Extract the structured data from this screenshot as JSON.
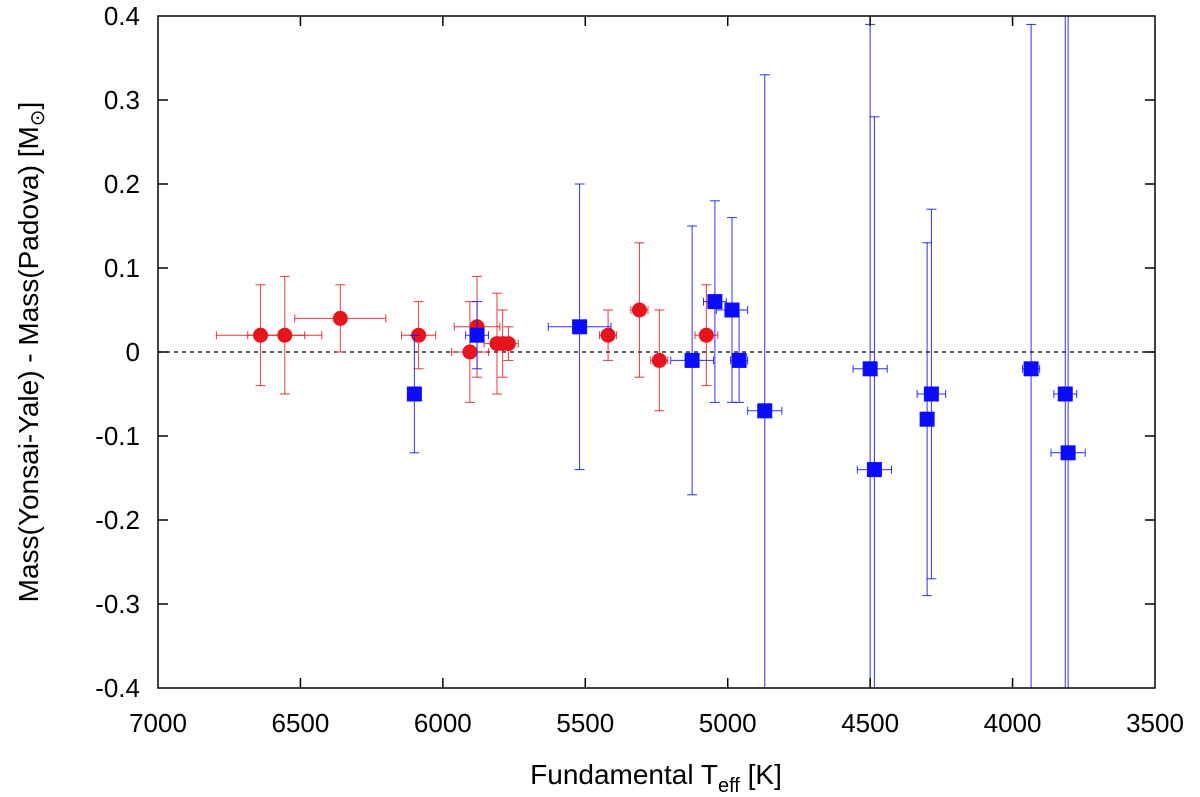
{
  "chart_data": {
    "type": "scatter",
    "title": "",
    "xlabel": {
      "main": "Fundamental T",
      "sub": "eff",
      "unit": " [K]"
    },
    "ylabel": {
      "main": "Mass(Yonsai-Yale) - Mass(Padova) [M",
      "sun_symbol": "⊙",
      "end": "]"
    },
    "xlim": [
      7000,
      3500
    ],
    "ylim": [
      -0.4,
      0.4
    ],
    "x_reversed": true,
    "xticks": [
      "7000",
      "6500",
      "6000",
      "5500",
      "5000",
      "4500",
      "4000",
      "3500"
    ],
    "yticks": [
      "-0.4",
      "-0.3",
      "-0.2",
      "-0.1",
      "0",
      "0.1",
      "0.2",
      "0.3",
      "0.4"
    ],
    "reference_line": {
      "y": 0,
      "style": "dashed"
    },
    "grid": false,
    "series": [
      {
        "color": "#e8141c",
        "marker": "circle",
        "points": [
          {
            "x": 6640,
            "y": 0.02,
            "xerr": 155,
            "ylo": -0.04,
            "yhi": 0.08
          },
          {
            "x": 6555,
            "y": 0.02,
            "xerr": 130,
            "ylo": -0.05,
            "yhi": 0.09
          },
          {
            "x": 6360,
            "y": 0.04,
            "xerr": 160,
            "ylo": 0.0,
            "yhi": 0.08
          },
          {
            "x": 6085,
            "y": 0.02,
            "xerr": 60,
            "ylo": -0.02,
            "yhi": 0.06
          },
          {
            "x": 5905,
            "y": 0.0,
            "xerr": 65,
            "ylo": -0.06,
            "yhi": 0.06
          },
          {
            "x": 5880,
            "y": 0.03,
            "xerr": 80,
            "ylo": -0.03,
            "yhi": 0.09
          },
          {
            "x": 5810,
            "y": 0.01,
            "xerr": 45,
            "ylo": -0.05,
            "yhi": 0.07
          },
          {
            "x": 5790,
            "y": 0.01,
            "xerr": 35,
            "ylo": -0.03,
            "yhi": 0.05
          },
          {
            "x": 5770,
            "y": 0.01,
            "xerr": 35,
            "ylo": -0.01,
            "yhi": 0.03
          },
          {
            "x": 5420,
            "y": 0.02,
            "xerr": 30,
            "ylo": -0.01,
            "yhi": 0.05
          },
          {
            "x": 5310,
            "y": 0.05,
            "xerr": 30,
            "ylo": -0.03,
            "yhi": 0.13
          },
          {
            "x": 5240,
            "y": -0.01,
            "xerr": 30,
            "ylo": -0.07,
            "yhi": 0.05
          },
          {
            "x": 5075,
            "y": 0.02,
            "xerr": 40,
            "ylo": -0.04,
            "yhi": 0.08
          }
        ]
      },
      {
        "color": "#0b0bff",
        "marker": "square",
        "points": [
          {
            "x": 6100,
            "y": -0.05,
            "xerr": 15,
            "ylo": -0.12,
            "yhi": 0.02
          },
          {
            "x": 5880,
            "y": 0.02,
            "xerr": 40,
            "ylo": -0.02,
            "yhi": 0.06
          },
          {
            "x": 5520,
            "y": 0.03,
            "xerr": 110,
            "ylo": -0.14,
            "yhi": 0.2
          },
          {
            "x": 5125,
            "y": -0.01,
            "xerr": 75,
            "ylo": -0.17,
            "yhi": 0.15
          },
          {
            "x": 5045,
            "y": 0.06,
            "xerr": 40,
            "ylo": -0.06,
            "yhi": 0.18
          },
          {
            "x": 4985,
            "y": 0.05,
            "xerr": 55,
            "ylo": -0.06,
            "yhi": 0.16
          },
          {
            "x": 4960,
            "y": -0.01,
            "xerr": 30,
            "ylo": -0.06,
            "yhi": 0.05
          },
          {
            "x": 4870,
            "y": -0.07,
            "xerr": 60,
            "ylo": -0.45,
            "yhi": 0.33
          },
          {
            "x": 4500,
            "y": -0.02,
            "xerr": 60,
            "ylo": -0.45,
            "yhi": 0.39
          },
          {
            "x": 4485,
            "y": -0.14,
            "xerr": 60,
            "ylo": -0.45,
            "yhi": 0.28
          },
          {
            "x": 4300,
            "y": -0.08,
            "xerr": 20,
            "ylo": -0.29,
            "yhi": 0.13
          },
          {
            "x": 4285,
            "y": -0.05,
            "xerr": 50,
            "ylo": -0.27,
            "yhi": 0.17
          },
          {
            "x": 3935,
            "y": -0.02,
            "xerr": 30,
            "ylo": -0.45,
            "yhi": 0.39
          },
          {
            "x": 3815,
            "y": -0.05,
            "xerr": 40,
            "ylo": -0.45,
            "yhi": 0.45
          },
          {
            "x": 3805,
            "y": -0.12,
            "xerr": 60,
            "ylo": -0.45,
            "yhi": 0.45
          }
        ]
      }
    ]
  }
}
